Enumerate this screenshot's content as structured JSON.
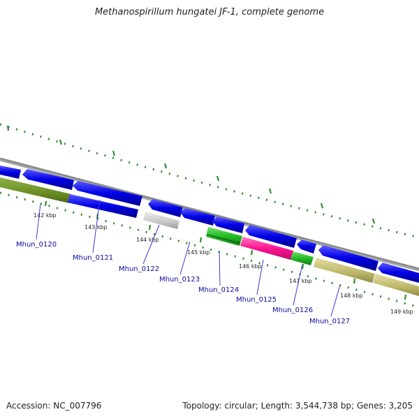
{
  "title": "Methanospirillum hungatei JF-1, complete genome",
  "footer": {
    "accession": "Accession: NC_007796",
    "summary": "Topology: circular; Length: 3,544,738 bp; Genes: 3,205"
  },
  "ticks": [
    "142 kbp",
    "143 kbp",
    "144 kbp",
    "145 kbp",
    "146 kbp",
    "147 kbp",
    "148 kbp",
    "149 kbp"
  ],
  "genes": [
    "Mhun_0120",
    "Mhun_0121",
    "Mhun_0122",
    "Mhun_0123",
    "Mhun_0124",
    "Mhun_0125",
    "Mhun_0126",
    "Mhun_0127"
  ],
  "colors": {
    "backbone": "#8a8a8a",
    "cds": "#0000e6",
    "olive": "#6b8e23",
    "grey": "#c8c8c8",
    "green": "#22bb22",
    "magenta": "#ff1493",
    "khaki": "#bdb76b",
    "tick": "#2e8b2e",
    "label": "#0a0aa0"
  }
}
